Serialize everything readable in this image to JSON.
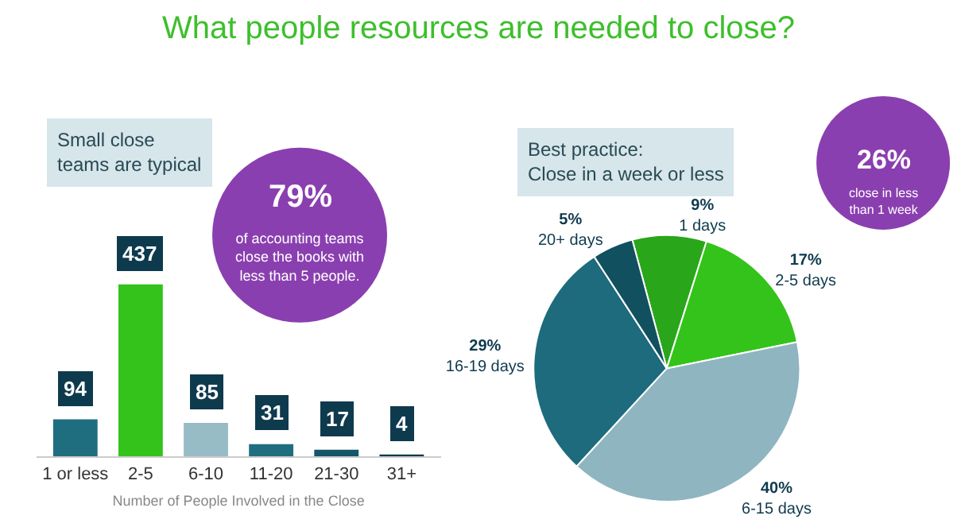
{
  "chart_data": [
    {
      "type": "bar",
      "title": "What people resources are needed to close?",
      "xlabel": "Number of People Involved in the Close",
      "categories": [
        "1 or less",
        "2-5",
        "6-10",
        "11-20",
        "21-30",
        "31+"
      ],
      "values": [
        94,
        437,
        85,
        31,
        17,
        4
      ],
      "colors": [
        "#1e6e80",
        "#33c31a",
        "#98bcc6",
        "#1e6e80",
        "#14566a",
        "#0e3a4e"
      ],
      "data_labels": true,
      "annotations": [
        "Small close\nteams are typical",
        "79%",
        "of accounting teams\nclose the books with\nless than 5 people."
      ]
    },
    {
      "type": "pie",
      "categories": [
        "1 days",
        "2-5 days",
        "6-15 days",
        "16-19 days",
        "20+ days"
      ],
      "values": [
        9,
        17,
        40,
        29,
        5
      ],
      "value_labels": [
        "9%",
        "17%",
        "40%",
        "29%",
        "5%"
      ],
      "colors": [
        "#2aa61a",
        "#33c31a",
        "#8fb5c0",
        "#1d6b7d",
        "#11505f"
      ],
      "annotations": [
        "Best practice:\nClose in a week or less",
        "26%",
        "close in less\nthan 1 week"
      ]
    }
  ]
}
